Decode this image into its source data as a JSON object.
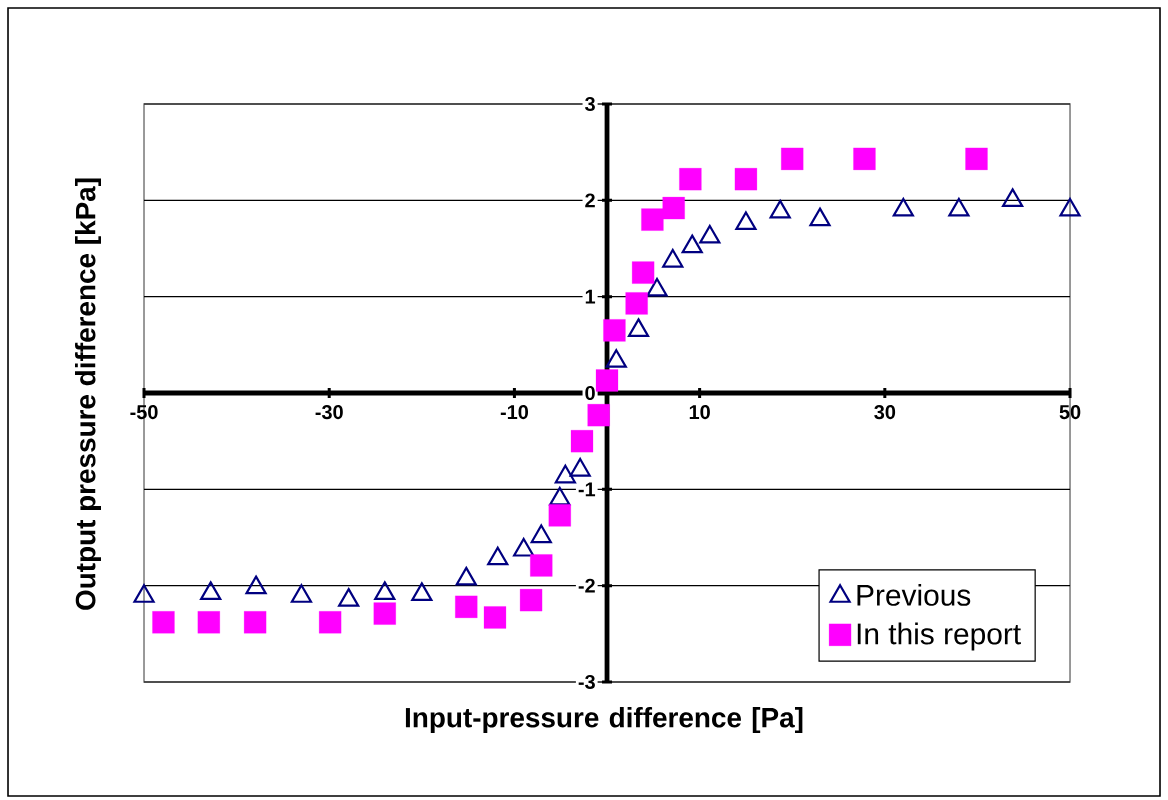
{
  "chart_data": {
    "type": "scatter",
    "xlabel": "Input-pressure difference [Pa]",
    "ylabel": "Output pressure difference [kPa]",
    "xlim": [
      -50,
      50
    ],
    "xticks": [
      -50,
      -30,
      -10,
      10,
      30,
      50
    ],
    "ylim": [
      -3,
      3
    ],
    "yticks": [
      -3,
      -2,
      -1,
      0,
      1,
      2,
      3
    ],
    "grid": "y",
    "legend": "bottom right",
    "series": [
      {
        "name": "Previous",
        "color": "#000080",
        "marker": "triangle",
        "x": [
          -50,
          -42.8,
          -37.9,
          -33,
          -27.9,
          -24,
          -20,
          -15.2,
          -11.8,
          -9,
          -7.1,
          -5.1,
          -4.5,
          -2.9,
          0.3,
          1.0,
          3.4,
          5.4,
          7.1,
          9.2,
          11.1,
          15,
          18.7,
          23,
          32,
          38,
          43.8,
          50
        ],
        "values": [
          -2.11,
          -2.08,
          -2.02,
          -2.11,
          -2.15,
          -2.08,
          -2.09,
          -1.93,
          -1.72,
          -1.63,
          -1.49,
          -1.1,
          -0.87,
          -0.8,
          null,
          0.33,
          0.65,
          1.07,
          1.37,
          1.52,
          1.62,
          1.76,
          1.88,
          1.8,
          1.9,
          1.9,
          2.0,
          1.9
        ]
      },
      {
        "name": "In this report",
        "color": "#ff00ff",
        "marker": "square",
        "x": [
          -47.9,
          -43,
          -38,
          -29.9,
          -24,
          -15.2,
          -12.1,
          -8.2,
          -7.1,
          -5.1,
          -2.7,
          -0.9,
          0,
          0.8,
          3.2,
          3.9,
          4.9,
          7.2,
          9,
          15,
          20,
          27.8,
          39.9
        ],
        "values": [
          -2.38,
          -2.38,
          -2.38,
          -2.38,
          -2.29,
          -2.22,
          -2.33,
          -2.15,
          -1.79,
          -1.27,
          -0.5,
          -0.23,
          0.13,
          0.65,
          0.93,
          1.25,
          1.8,
          1.92,
          2.22,
          2.22,
          2.43,
          2.43,
          2.43
        ]
      }
    ]
  }
}
